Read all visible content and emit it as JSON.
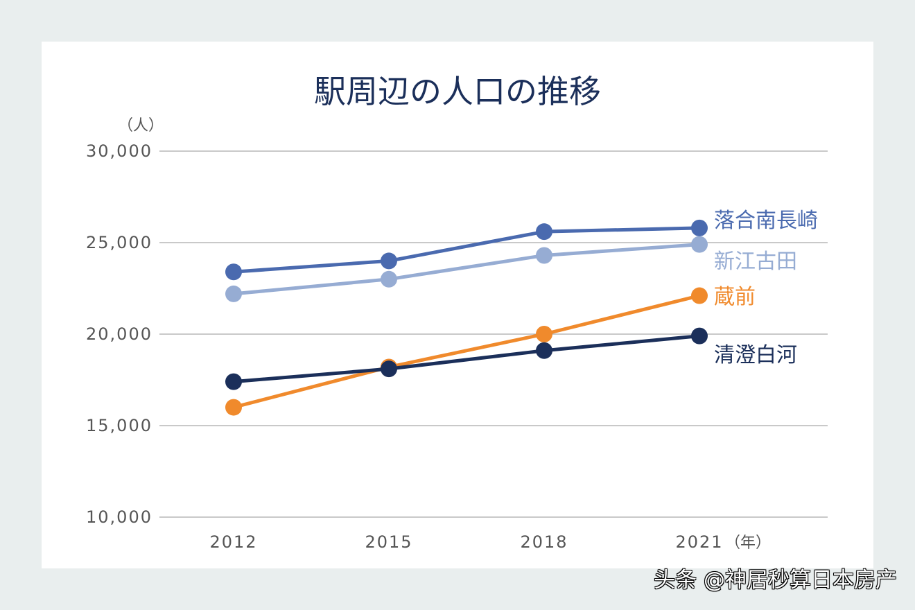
{
  "chart_data": {
    "type": "line",
    "title": "駅周辺の人口の推移",
    "ylabel": "（人）",
    "xlabel": "（年）",
    "x": [
      "2012",
      "2015",
      "2018",
      "2021"
    ],
    "ylim": [
      10000,
      30000
    ],
    "yticks": [
      10000,
      15000,
      20000,
      25000,
      30000
    ],
    "ytick_labels": [
      "10,000",
      "15,000",
      "20,000",
      "25,000",
      "30,000"
    ],
    "grid": true,
    "series": [
      {
        "name": "落合南長崎",
        "color": "#4a6aaf",
        "values": [
          23400,
          24000,
          25600,
          25800
        ]
      },
      {
        "name": "新江古田",
        "color": "#96acd3",
        "values": [
          22200,
          23000,
          24300,
          24900
        ]
      },
      {
        "name": "蔵前",
        "color": "#f08a2c",
        "values": [
          16000,
          18200,
          20000,
          22100
        ]
      },
      {
        "name": "清澄白河",
        "color": "#1b2f5a",
        "values": [
          17400,
          18100,
          19100,
          19900
        ]
      }
    ]
  },
  "watermark": "头条 @神居秒算日本房产"
}
